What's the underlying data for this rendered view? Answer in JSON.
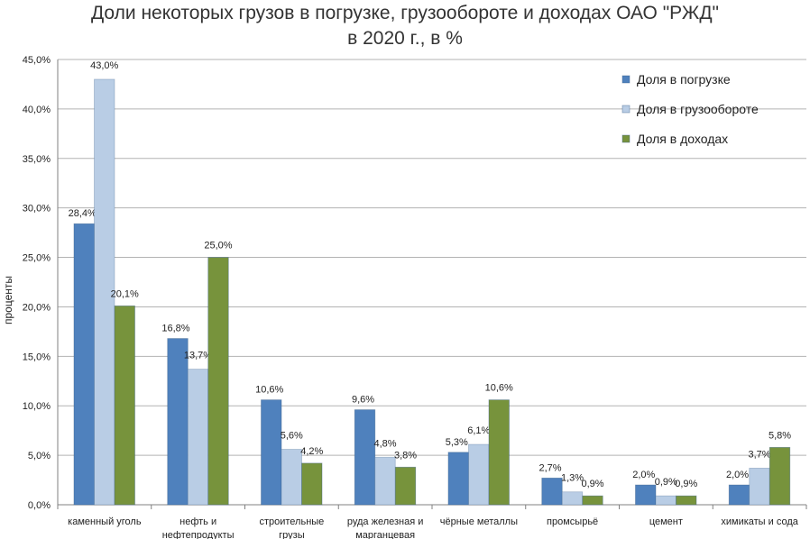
{
  "title_line1": "Доли некоторых грузов в погрузке, грузообороте и доходах ОАО \"РЖД\"",
  "title_line2": "в 2020 г., в %",
  "chart_data": {
    "type": "bar",
    "title": "Доли некоторых грузов в погрузке, грузообороте и доходах ОАО \"РЖД\" в 2020 г., в %",
    "ylabel": "проценты",
    "xlabel": "",
    "ylim": [
      0,
      45
    ],
    "ytick_step": 5,
    "yticks": [
      "0,0%",
      "5,0%",
      "10,0%",
      "15,0%",
      "20,0%",
      "25,0%",
      "30,0%",
      "35,0%",
      "40,0%",
      "45,0%"
    ],
    "grid": true,
    "legend_position": "top-right",
    "categories": [
      [
        "каменный уголь"
      ],
      [
        "нефть и",
        "нефтепродукты"
      ],
      [
        "строительные",
        "грузы"
      ],
      [
        "руда железная и",
        "марганцевая"
      ],
      [
        "чёрные металлы"
      ],
      [
        "промсырьё"
      ],
      [
        "цемент"
      ],
      [
        "химикаты и сода"
      ]
    ],
    "series": [
      {
        "name": "Доля в погрузке",
        "color": "#4f81bd",
        "values": [
          28.4,
          16.8,
          10.6,
          9.6,
          5.3,
          2.7,
          2.0,
          2.0
        ],
        "labels": [
          "28,4%",
          "16,8%",
          "10,6%",
          "9,6%",
          "5,3%",
          "2,7%",
          "2,0%",
          "2,0%"
        ]
      },
      {
        "name": "Доля в грузообороте",
        "color": "#b9cde5",
        "values": [
          43.0,
          13.7,
          5.6,
          4.8,
          6.1,
          1.3,
          0.9,
          3.7
        ],
        "labels": [
          "43,0%",
          "13,7%",
          "5,6%",
          "4,8%",
          "6,1%",
          "1,3%",
          "0,9%",
          "3,7%"
        ]
      },
      {
        "name": "Доля в доходах",
        "color": "#77933c",
        "values": [
          20.1,
          25.0,
          4.2,
          3.8,
          10.6,
          0.9,
          0.9,
          5.8
        ],
        "labels": [
          "20,1%",
          "25,0%",
          "4,2%",
          "3,8%",
          "10,6%",
          "0,9%",
          "0,9%",
          "5,8%"
        ]
      }
    ]
  }
}
